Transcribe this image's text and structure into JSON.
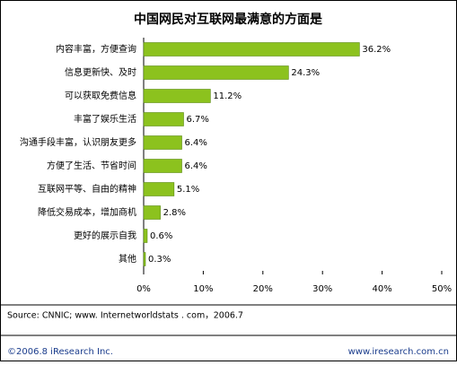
{
  "chart_data": {
    "type": "bar",
    "orientation": "horizontal",
    "title": "中国网民对互联网最满意的方面是",
    "categories": [
      "内容丰富，方便查询",
      "信息更新快、及时",
      "可以获取免费信息",
      "丰富了娱乐生活",
      "沟通手段丰富，认识朋友更多",
      "方便了生活、节省时间",
      "互联网平等、自由的精神",
      "降低交易成本，增加商机",
      "更好的展示自我",
      "其他"
    ],
    "values": [
      36.2,
      24.3,
      11.2,
      6.7,
      6.4,
      6.4,
      5.1,
      2.8,
      0.6,
      0.3
    ],
    "value_labels": [
      "36.2%",
      "24.3%",
      "11.2%",
      "6.7%",
      "6.4%",
      "6.4%",
      "5.1%",
      "2.8%",
      "0.6%",
      "0.3%"
    ],
    "color": "#8cc21e",
    "xlim": [
      0,
      50
    ],
    "xticks": [
      {
        "value": 0,
        "label": "0%"
      },
      {
        "value": 10,
        "label": "10%"
      },
      {
        "value": 20,
        "label": "20%"
      },
      {
        "value": 30,
        "label": "30%"
      },
      {
        "value": 40,
        "label": "40%"
      },
      {
        "value": 50,
        "label": "50%"
      }
    ]
  },
  "source": "Source: CNNIC; www. Internetworldstats . com，2006.7",
  "footer": {
    "copyright": "©2006.8 iResearch Inc.",
    "website": "www.iresearch.com.cn"
  }
}
